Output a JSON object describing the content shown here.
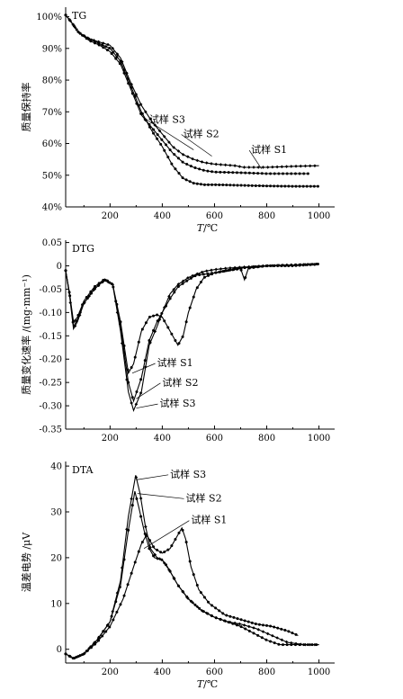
{
  "chart_data": [
    {
      "type": "line",
      "panel_label": "TG",
      "ylabel": "质量保持率",
      "xlabel_var": "T",
      "xlabel_unit": "/℃",
      "xlim": [
        30,
        1060
      ],
      "ylim": [
        40,
        103
      ],
      "xticks": [
        200,
        400,
        600,
        800,
        1000
      ],
      "xtick_labels": [
        "200",
        "400",
        "600",
        "800",
        "1000"
      ],
      "yticks": [
        40,
        50,
        60,
        70,
        80,
        90,
        100
      ],
      "ytick_labels": [
        "40%",
        "50%",
        "60%",
        "70%",
        "80%",
        "90%",
        "100%"
      ],
      "series": [
        {
          "name": "试样 S1",
          "points": [
            [
              30,
              100.5
            ],
            [
              50,
              98.5
            ],
            [
              80,
              95
            ],
            [
              120,
              93
            ],
            [
              160,
              91.5
            ],
            [
              200,
              90
            ],
            [
              240,
              86
            ],
            [
              280,
              78
            ],
            [
              320,
              70
            ],
            [
              360,
              64
            ],
            [
              400,
              59
            ],
            [
              440,
              53
            ],
            [
              480,
              49
            ],
            [
              520,
              47.5
            ],
            [
              560,
              47
            ],
            [
              600,
              47
            ],
            [
              700,
              46.8
            ],
            [
              800,
              46.6
            ],
            [
              900,
              46.5
            ],
            [
              1000,
              46.5
            ]
          ]
        },
        {
          "name": "试样 S2",
          "points": [
            [
              30,
              100.5
            ],
            [
              50,
              98.5
            ],
            [
              80,
              95
            ],
            [
              120,
              92.5
            ],
            [
              160,
              91
            ],
            [
              200,
              89
            ],
            [
              240,
              85
            ],
            [
              280,
              77
            ],
            [
              320,
              69
            ],
            [
              360,
              65
            ],
            [
              400,
              61
            ],
            [
              440,
              57
            ],
            [
              480,
              54
            ],
            [
              520,
              52.5
            ],
            [
              560,
              51.5
            ],
            [
              600,
              51
            ],
            [
              700,
              50.8
            ],
            [
              800,
              50.5
            ],
            [
              900,
              50.5
            ],
            [
              960,
              50.5
            ]
          ]
        },
        {
          "name": "试样 S3",
          "points": [
            [
              30,
              100.5
            ],
            [
              50,
              98.5
            ],
            [
              80,
              95
            ],
            [
              120,
              93
            ],
            [
              160,
              92
            ],
            [
              200,
              91
            ],
            [
              240,
              87
            ],
            [
              280,
              79
            ],
            [
              320,
              72
            ],
            [
              360,
              67
            ],
            [
              400,
              63
            ],
            [
              440,
              59
            ],
            [
              480,
              56.5
            ],
            [
              520,
              55
            ],
            [
              560,
              54
            ],
            [
              600,
              53.5
            ],
            [
              680,
              53
            ],
            [
              710,
              52.5
            ],
            [
              800,
              52.5
            ],
            [
              900,
              52.8
            ],
            [
              1000,
              53
            ]
          ]
        }
      ],
      "annotations": [
        {
          "text": "试样 S3",
          "x": 350,
          "y": 66.5
        },
        {
          "text": "试样 S2",
          "x": 480,
          "y": 62
        },
        {
          "text": "试样 S1",
          "x": 740,
          "y": 57
        }
      ]
    },
    {
      "type": "line",
      "panel_label": "DTG",
      "ylabel": "质量变化速率 /(mg·mm⁻¹)",
      "xlabel_var": "",
      "xlabel_unit": "",
      "xlim": [
        30,
        1060
      ],
      "ylim": [
        -0.35,
        0.055
      ],
      "xticks": [
        200,
        400,
        600,
        800,
        1000
      ],
      "xtick_labels": [
        "200",
        "400",
        "600",
        "800",
        "1000"
      ],
      "yticks": [
        -0.35,
        -0.3,
        -0.25,
        -0.2,
        -0.15,
        -0.1,
        -0.05,
        0,
        0.05
      ],
      "ytick_labels": [
        "-0.35",
        "-0.30",
        "-0.25",
        "-0.20",
        "-0.15",
        "-0.10",
        "-0.05",
        "0",
        "0.05"
      ],
      "series": [
        {
          "name": "试样 S1",
          "points": [
            [
              30,
              -0.01
            ],
            [
              45,
              -0.06
            ],
            [
              60,
              -0.13
            ],
            [
              75,
              -0.115
            ],
            [
              100,
              -0.08
            ],
            [
              140,
              -0.05
            ],
            [
              180,
              -0.03
            ],
            [
              210,
              -0.04
            ],
            [
              240,
              -0.12
            ],
            [
              270,
              -0.23
            ],
            [
              290,
              -0.21
            ],
            [
              320,
              -0.14
            ],
            [
              350,
              -0.11
            ],
            [
              380,
              -0.105
            ],
            [
              400,
              -0.11
            ],
            [
              430,
              -0.14
            ],
            [
              460,
              -0.17
            ],
            [
              480,
              -0.15
            ],
            [
              500,
              -0.1
            ],
            [
              530,
              -0.05
            ],
            [
              560,
              -0.025
            ],
            [
              600,
              -0.015
            ],
            [
              650,
              -0.01
            ],
            [
              700,
              -0.005
            ],
            [
              750,
              -0.002
            ],
            [
              800,
              0.0
            ],
            [
              900,
              0.0
            ],
            [
              1000,
              0.004
            ]
          ]
        },
        {
          "name": "试样 S2",
          "points": [
            [
              30,
              -0.01
            ],
            [
              45,
              -0.06
            ],
            [
              60,
              -0.12
            ],
            [
              75,
              -0.11
            ],
            [
              100,
              -0.075
            ],
            [
              140,
              -0.045
            ],
            [
              180,
              -0.028
            ],
            [
              210,
              -0.04
            ],
            [
              240,
              -0.13
            ],
            [
              270,
              -0.25
            ],
            [
              290,
              -0.29
            ],
            [
              320,
              -0.24
            ],
            [
              350,
              -0.16
            ],
            [
              380,
              -0.12
            ],
            [
              400,
              -0.1
            ],
            [
              430,
              -0.07
            ],
            [
              460,
              -0.045
            ],
            [
              500,
              -0.03
            ],
            [
              530,
              -0.02
            ],
            [
              560,
              -0.018
            ],
            [
              600,
              -0.015
            ],
            [
              650,
              -0.01
            ],
            [
              700,
              -0.006
            ],
            [
              715,
              -0.03
            ],
            [
              730,
              -0.005
            ],
            [
              800,
              0.0
            ],
            [
              900,
              0.002
            ],
            [
              1000,
              0.004
            ]
          ]
        },
        {
          "name": "试样 S3",
          "points": [
            [
              30,
              -0.01
            ],
            [
              45,
              -0.065
            ],
            [
              60,
              -0.135
            ],
            [
              75,
              -0.12
            ],
            [
              100,
              -0.08
            ],
            [
              140,
              -0.05
            ],
            [
              180,
              -0.03
            ],
            [
              210,
              -0.04
            ],
            [
              240,
              -0.14
            ],
            [
              270,
              -0.27
            ],
            [
              290,
              -0.31
            ],
            [
              320,
              -0.27
            ],
            [
              350,
              -0.17
            ],
            [
              380,
              -0.13
            ],
            [
              400,
              -0.1
            ],
            [
              430,
              -0.06
            ],
            [
              460,
              -0.04
            ],
            [
              500,
              -0.025
            ],
            [
              530,
              -0.018
            ],
            [
              560,
              -0.012
            ],
            [
              600,
              -0.008
            ],
            [
              650,
              -0.005
            ],
            [
              700,
              -0.003
            ],
            [
              800,
              0.0
            ],
            [
              900,
              0.002
            ],
            [
              1000,
              0.003
            ]
          ]
        }
      ],
      "annotations": [
        {
          "text": "试样 S1",
          "x": 380,
          "y": -0.215
        },
        {
          "text": "试样 S2",
          "x": 400,
          "y": -0.257
        },
        {
          "text": "试样 S3",
          "x": 390,
          "y": -0.302
        }
      ]
    },
    {
      "type": "line",
      "panel_label": "DTA",
      "ylabel": "温差电势 /μV",
      "xlabel_var": "T",
      "xlabel_unit": "/℃",
      "xlim": [
        30,
        1060
      ],
      "ylim": [
        -3,
        41
      ],
      "xticks": [
        200,
        400,
        600,
        800,
        1000
      ],
      "xtick_labels": [
        "200",
        "400",
        "600",
        "800",
        "1000"
      ],
      "yticks": [
        0,
        10,
        20,
        30,
        40
      ],
      "ytick_labels": [
        "0",
        "10",
        "20",
        "30",
        "40"
      ],
      "series": [
        {
          "name": "试样 S1",
          "points": [
            [
              30,
              -1
            ],
            [
              60,
              -2
            ],
            [
              100,
              -1
            ],
            [
              150,
              1.5
            ],
            [
              200,
              5
            ],
            [
              250,
              11
            ],
            [
              290,
              18
            ],
            [
              320,
              23
            ],
            [
              340,
              25
            ],
            [
              370,
              22
            ],
            [
              400,
              21
            ],
            [
              430,
              22
            ],
            [
              460,
              25
            ],
            [
              475,
              26.5
            ],
            [
              490,
              24
            ],
            [
              510,
              18
            ],
            [
              540,
              13
            ],
            [
              580,
              10
            ],
            [
              640,
              7.5
            ],
            [
              700,
              6.5
            ],
            [
              760,
              5.5
            ],
            [
              820,
              5
            ],
            [
              880,
              4
            ],
            [
              920,
              3
            ]
          ]
        },
        {
          "name": "试样 S2",
          "points": [
            [
              30,
              -1
            ],
            [
              60,
              -2
            ],
            [
              100,
              -1
            ],
            [
              150,
              2
            ],
            [
              200,
              6
            ],
            [
              240,
              14
            ],
            [
              270,
              26
            ],
            [
              295,
              34.5
            ],
            [
              310,
              31
            ],
            [
              330,
              26
            ],
            [
              350,
              22
            ],
            [
              370,
              20
            ],
            [
              400,
              19.5
            ],
            [
              420,
              18
            ],
            [
              460,
              14
            ],
            [
              500,
              11
            ],
            [
              550,
              8.5
            ],
            [
              600,
              7
            ],
            [
              650,
              6
            ],
            [
              700,
              5
            ],
            [
              750,
              3.5
            ],
            [
              800,
              2
            ],
            [
              850,
              1
            ],
            [
              900,
              1
            ],
            [
              960,
              1
            ],
            [
              1000,
              1
            ]
          ]
        },
        {
          "name": "试样 S3",
          "points": [
            [
              30,
              -1
            ],
            [
              60,
              -2
            ],
            [
              100,
              -1
            ],
            [
              150,
              2
            ],
            [
              200,
              6
            ],
            [
              240,
              15
            ],
            [
              270,
              29
            ],
            [
              298,
              38
            ],
            [
              315,
              34
            ],
            [
              335,
              27
            ],
            [
              355,
              22
            ],
            [
              380,
              20
            ],
            [
              400,
              19.5
            ],
            [
              430,
              17
            ],
            [
              460,
              14
            ],
            [
              500,
              11
            ],
            [
              550,
              8.5
            ],
            [
              600,
              7
            ],
            [
              650,
              6
            ],
            [
              700,
              5.5
            ],
            [
              760,
              4.5
            ],
            [
              820,
              3
            ],
            [
              880,
              1.5
            ],
            [
              940,
              1
            ],
            [
              1000,
              1
            ]
          ]
        }
      ],
      "annotations": [
        {
          "text": "试样 S3",
          "x": 430,
          "y": 37.5
        },
        {
          "text": "试样 S2",
          "x": 490,
          "y": 32.3
        },
        {
          "text": "试样 S1",
          "x": 510,
          "y": 27.5
        }
      ]
    }
  ]
}
